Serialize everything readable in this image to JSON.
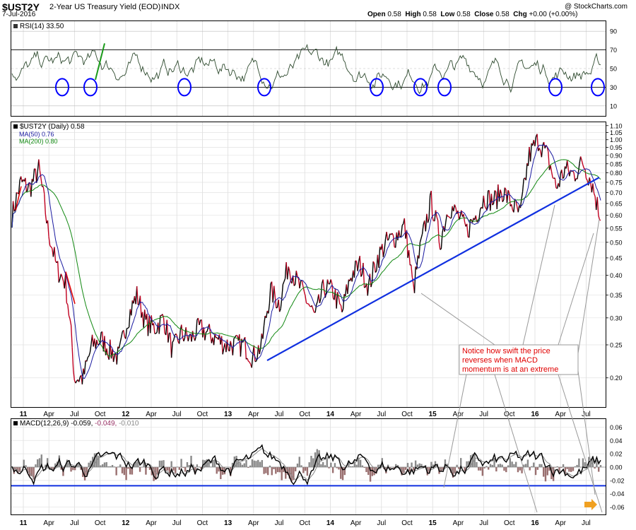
{
  "header": {
    "symbol": "$UST2Y",
    "name": "2-Year US Treasury Yield (EOD)",
    "exchange": "INDX",
    "date": "7-Jul-2016",
    "copyright": "@ StockCharts.com",
    "open_label": "Open",
    "open": "0.58",
    "high_label": "High",
    "high": "0.58",
    "low_label": "Low",
    "low": "0.58",
    "close_label": "Close",
    "close": "0.58",
    "chg_label": "Chg",
    "chg": "+0.00 (+0.00%)"
  },
  "rsi_panel": {
    "legend": "RSI(14) 33.50",
    "ticks": [
      "90",
      "70",
      "50",
      "30",
      "10"
    ],
    "circle_color": "#0000ff"
  },
  "price_panel": {
    "legend_main": "$UST2Y (Daily) 0.58",
    "legend_ma50": "MA(50) 0.76",
    "legend_ma200": "MA(200) 0.80",
    "ticks": [
      "1.10",
      "1.05",
      "1.00",
      "0.95",
      "0.90",
      "0.85",
      "0.80",
      "0.75",
      "0.70",
      "0.65",
      "0.60",
      "0.55",
      "0.50",
      "0.45",
      "0.40",
      "0.35",
      "0.30",
      "0.25",
      "0.20"
    ],
    "annotation": [
      "Notice how swift the price",
      "reverses when MACD",
      "momentum is at an extreme"
    ],
    "colors": {
      "up": "#000000",
      "down": "#c00020",
      "ma50": "#1a1aa0",
      "ma200": "#118811",
      "trend": "#1030e0",
      "annotation": "#e00000"
    }
  },
  "macd_panel": {
    "legend_a": "MACD(12,26,9) -0.059,",
    "legend_b": "-0.049,",
    "legend_c": "-0.010",
    "ticks": [
      "0.06",
      "0.04",
      "0.02",
      "0.00",
      "-0.02",
      "-0.04",
      "-0.06"
    ],
    "arrow_color": "#f0a020"
  },
  "x_axis": {
    "labels": [
      "11",
      "Apr",
      "Jul",
      "Oct",
      "12",
      "Apr",
      "Jul",
      "Oct",
      "13",
      "Apr",
      "Jul",
      "Oct",
      "14",
      "Apr",
      "Jul",
      "Oct",
      "15",
      "Apr",
      "Jul",
      "Oct",
      "16",
      "Apr",
      "Jul"
    ]
  },
  "chart_data": {
    "type": "line",
    "title": "$UST2Y 2-Year US Treasury Yield (EOD) INDX",
    "yscale": "log",
    "grid": true,
    "series": [
      {
        "name": "$UST2Y (Daily)",
        "x": [
          "2011-01",
          "2011-02",
          "2011-03",
          "2011-04",
          "2011-05",
          "2011-06",
          "2011-07",
          "2011-08",
          "2011-09",
          "2011-10",
          "2011-11",
          "2011-12",
          "2012-01",
          "2012-02",
          "2012-03",
          "2012-04",
          "2012-05",
          "2012-06",
          "2012-07",
          "2012-08",
          "2012-09",
          "2012-10",
          "2012-11",
          "2012-12",
          "2013-01",
          "2013-02",
          "2013-03",
          "2013-04",
          "2013-05",
          "2013-06",
          "2013-07",
          "2013-08",
          "2013-09",
          "2013-10",
          "2013-11",
          "2013-12",
          "2014-01",
          "2014-02",
          "2014-03",
          "2014-04",
          "2014-05",
          "2014-06",
          "2014-07",
          "2014-08",
          "2014-09",
          "2014-10",
          "2014-11",
          "2014-12",
          "2015-01",
          "2015-02",
          "2015-03",
          "2015-04",
          "2015-05",
          "2015-06",
          "2015-07",
          "2015-08",
          "2015-09",
          "2015-10",
          "2015-11",
          "2015-12",
          "2016-01",
          "2016-02",
          "2016-03",
          "2016-04",
          "2016-05",
          "2016-06",
          "2016-07"
        ],
        "values": [
          0.6,
          0.75,
          0.72,
          0.82,
          0.55,
          0.42,
          0.38,
          0.2,
          0.2,
          0.25,
          0.26,
          0.24,
          0.23,
          0.3,
          0.35,
          0.29,
          0.28,
          0.3,
          0.24,
          0.27,
          0.26,
          0.28,
          0.27,
          0.26,
          0.25,
          0.25,
          0.25,
          0.23,
          0.25,
          0.36,
          0.33,
          0.43,
          0.38,
          0.34,
          0.3,
          0.37,
          0.36,
          0.31,
          0.4,
          0.43,
          0.37,
          0.45,
          0.5,
          0.52,
          0.56,
          0.36,
          0.51,
          0.66,
          0.5,
          0.64,
          0.6,
          0.54,
          0.6,
          0.68,
          0.66,
          0.71,
          0.65,
          0.6,
          0.9,
          1.0,
          0.9,
          0.72,
          0.82,
          0.79,
          0.86,
          0.75,
          0.58
        ]
      },
      {
        "name": "MA(50)",
        "values": "smoothed",
        "last": 0.76
      },
      {
        "name": "MA(200)",
        "values": "smoothed",
        "last": 0.8
      }
    ],
    "rsi": {
      "name": "RSI(14)",
      "last": 33.5,
      "ylim": [
        0,
        100
      ]
    },
    "macd": {
      "name": "MACD(12,26,9)",
      "macd": -0.059,
      "signal": -0.049,
      "histogram": -0.01,
      "ylim": [
        -0.07,
        0.07
      ]
    }
  }
}
